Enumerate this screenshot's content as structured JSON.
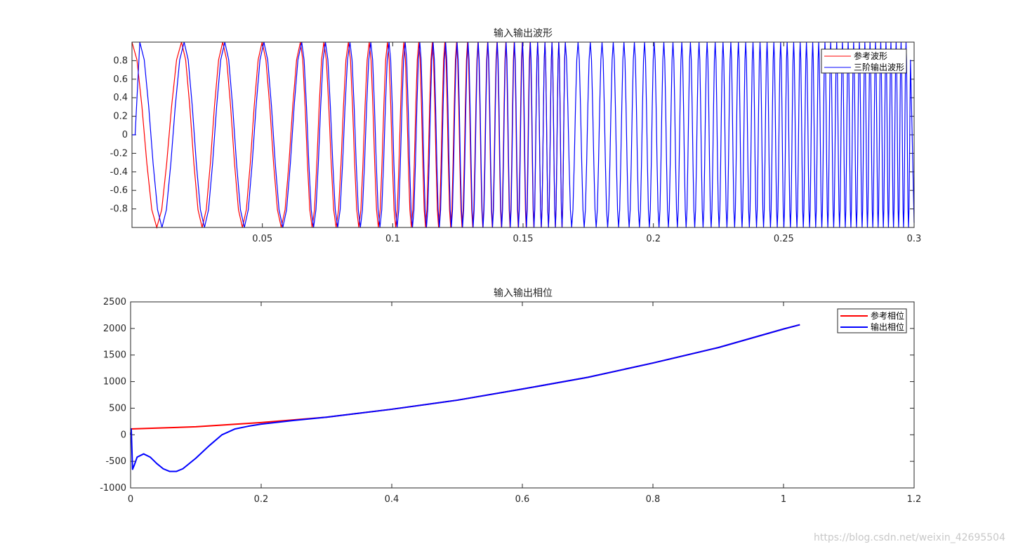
{
  "watermark": "https://blog.csdn.net/weixin_42695504",
  "colors": {
    "reference": "#ff0000",
    "output": "#0000ff",
    "axis": "#262626"
  },
  "chart_data": [
    {
      "type": "line",
      "title": "输入输出波形",
      "xlabel": "",
      "ylabel": "",
      "xlim": [
        0,
        0.3
      ],
      "ylim": [
        -1,
        1
      ],
      "xticks": [
        0.05,
        0.1,
        0.15,
        0.2,
        0.25,
        0.3
      ],
      "xtick_labels": [
        "0.05",
        "0.1",
        "0.15",
        "0.2",
        "0.25",
        "0.3"
      ],
      "yticks": [
        0.8,
        0.6,
        0.4,
        0.2,
        0,
        -0.2,
        -0.4,
        -0.6,
        -0.8
      ],
      "ytick_labels": [
        "0.8",
        "0.6",
        "0.4",
        "0.2",
        "0",
        "-0.2",
        "-0.4",
        "-0.6",
        "-0.8"
      ],
      "legend_position": "top-right",
      "series": [
        {
          "name": "参考波形",
          "color": "#ff0000",
          "peak_times": [
            0,
            0.019,
            0.0348,
            0.0499,
            0.0646,
            0.0736,
            0.083,
            0.091,
            0.098,
            0.1043,
            0.11,
            0.1152,
            0.12,
            0.1245,
            0.1287,
            0.1327,
            0.1364,
            0.14,
            0.1434,
            0.1466,
            0.1497,
            0.1527,
            0.1556,
            0.1584,
            0.1611,
            0.1637,
            0.1662
          ],
          "end_time": 0.1662
        },
        {
          "name": "三阶输出波形",
          "color": "#0000ff",
          "peak_times": [
            0.003,
            0.02,
            0.0356,
            0.0506,
            0.0651,
            0.0742,
            0.0836,
            0.0916,
            0.0986,
            0.1048,
            0.1104,
            0.1155,
            0.1203,
            0.1247,
            0.1289,
            0.1328,
            0.1365,
            0.1401,
            0.1435,
            0.1467,
            0.1498,
            0.1528,
            0.1556,
            0.1584,
            0.1611,
            0.1637,
            0.1662,
            0.1711,
            0.1758,
            0.1803,
            0.1846,
            0.1887,
            0.1927,
            0.1966,
            0.2003,
            0.204,
            0.2075,
            0.2109,
            0.2142,
            0.2175,
            0.2206,
            0.2237,
            0.2267,
            0.2297,
            0.2326,
            0.2354,
            0.2382,
            0.2409,
            0.2436,
            0.2462,
            0.2488,
            0.2513,
            0.2538,
            0.2563,
            0.2587,
            0.2611,
            0.2634,
            0.2658,
            0.268,
            0.2703,
            0.2725,
            0.2747,
            0.2768,
            0.279,
            0.2811,
            0.2831,
            0.2852,
            0.2872,
            0.2892,
            0.2911,
            0.2931,
            0.295,
            0.2969
          ],
          "end_time": 0.3
        }
      ]
    },
    {
      "type": "line",
      "title": "输入输出相位",
      "xlabel": "",
      "ylabel": "",
      "xlim": [
        0,
        1.2
      ],
      "ylim": [
        -1000,
        2500
      ],
      "xticks": [
        0,
        0.2,
        0.4,
        0.6,
        0.8,
        1,
        1.2
      ],
      "xtick_labels": [
        "0",
        "0.2",
        "0.4",
        "0.6",
        "0.8",
        "1",
        "1.2"
      ],
      "yticks": [
        2500,
        2000,
        1500,
        1000,
        500,
        0,
        -500,
        -1000
      ],
      "ytick_labels": [
        "2500",
        "2000",
        "1500",
        "1000",
        "500",
        "0",
        "-500",
        "-1000"
      ],
      "legend_position": "top-right",
      "series": [
        {
          "name": "参考相位",
          "color": "#ff0000",
          "x": [
            0,
            0.1,
            0.2,
            0.3,
            0.4,
            0.5,
            0.6,
            0.7,
            0.8,
            0.9,
            1.0,
            1.025
          ],
          "y": [
            110,
            150,
            230,
            330,
            480,
            650,
            860,
            1080,
            1350,
            1640,
            1990,
            2070
          ]
        },
        {
          "name": "输出相位",
          "color": "#0000ff",
          "x": [
            0,
            0.001,
            0.003,
            0.006,
            0.01,
            0.02,
            0.03,
            0.04,
            0.05,
            0.06,
            0.07,
            0.08,
            0.1,
            0.12,
            0.14,
            0.16,
            0.18,
            0.2,
            0.25,
            0.3,
            0.4,
            0.5,
            0.6,
            0.7,
            0.8,
            0.9,
            1.0,
            1.025
          ],
          "y": [
            0,
            110,
            -650,
            -560,
            -420,
            -360,
            -420,
            -540,
            -640,
            -690,
            -690,
            -640,
            -440,
            -210,
            0,
            110,
            160,
            200,
            270,
            330,
            480,
            650,
            860,
            1080,
            1350,
            1640,
            1990,
            2070
          ]
        }
      ]
    }
  ]
}
